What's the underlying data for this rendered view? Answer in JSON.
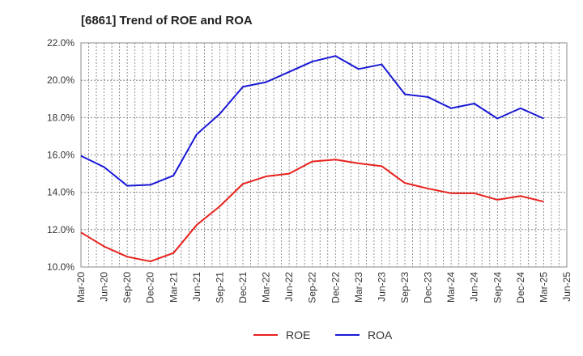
{
  "chart_data": {
    "type": "line",
    "title": "[6861]  Trend of ROE and ROA",
    "xlabel": "",
    "ylabel": "",
    "ylim": [
      10.0,
      22.0
    ],
    "y_ticks": [
      "10.0%",
      "12.0%",
      "14.0%",
      "16.0%",
      "18.0%",
      "20.0%",
      "22.0%"
    ],
    "categories": [
      "Mar-20",
      "Jun-20",
      "Sep-20",
      "Dec-20",
      "Mar-21",
      "Jun-21",
      "Sep-21",
      "Dec-21",
      "Mar-22",
      "Jun-22",
      "Sep-22",
      "Dec-22",
      "Mar-23",
      "Jun-23",
      "Sep-23",
      "Dec-23",
      "Mar-24",
      "Jun-24",
      "Sep-24",
      "Dec-24",
      "Mar-25",
      "Jun-25"
    ],
    "grid": true,
    "legend_position": "bottom-center",
    "series": [
      {
        "name": "ROE",
        "color": "#e8211c",
        "values": [
          11.85,
          11.1,
          10.55,
          10.3,
          10.75,
          12.25,
          13.25,
          14.45,
          14.85,
          15.0,
          15.65,
          15.75,
          15.55,
          15.4,
          14.5,
          14.2,
          13.95,
          13.95,
          13.6,
          13.8,
          13.5,
          null
        ]
      },
      {
        "name": "ROA",
        "color": "#1818d6",
        "values": [
          15.95,
          15.35,
          14.35,
          14.4,
          14.9,
          17.1,
          18.2,
          19.65,
          19.9,
          20.45,
          21.0,
          21.3,
          20.6,
          20.85,
          19.25,
          19.1,
          18.5,
          18.75,
          17.95,
          18.5,
          17.95,
          null
        ]
      }
    ]
  }
}
